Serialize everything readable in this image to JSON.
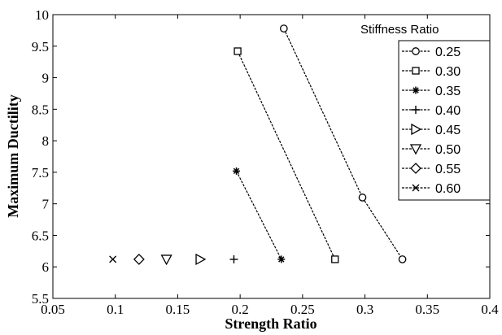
{
  "chart_data": {
    "type": "scatter",
    "xlabel": "Strength Ratio",
    "ylabel": "Maximum Ductility",
    "xlim": [
      0.05,
      0.4
    ],
    "ylim": [
      5.5,
      10
    ],
    "xticks": [
      0.05,
      0.1,
      0.15,
      0.2,
      0.25,
      0.3,
      0.35,
      0.4
    ],
    "yticks": [
      5.5,
      6,
      6.5,
      7,
      7.5,
      8,
      8.5,
      9,
      9.5,
      10
    ],
    "xtick_labels": [
      "0.05",
      "0.1",
      "0.15",
      "0.2",
      "0.25",
      "0.3",
      "0.35",
      "0.4"
    ],
    "ytick_labels": [
      "5.5",
      "6",
      "6.5",
      "7",
      "7.5",
      "8",
      "8.5",
      "9",
      "9.5",
      "10"
    ],
    "grid": false,
    "legend_title": "Stiffness Ratio",
    "legend_position": "top-right",
    "line_style": "dashed",
    "color": "#000000",
    "series": [
      {
        "name": "0.25",
        "marker": "circle",
        "points": [
          [
            0.235,
            9.78
          ],
          [
            0.298,
            7.1
          ],
          [
            0.33,
            6.12
          ]
        ]
      },
      {
        "name": "0.30",
        "marker": "square",
        "points": [
          [
            0.198,
            9.42
          ],
          [
            0.276,
            6.12
          ]
        ]
      },
      {
        "name": "0.35",
        "marker": "star",
        "points": [
          [
            0.197,
            7.52
          ],
          [
            0.233,
            6.12
          ]
        ]
      },
      {
        "name": "0.40",
        "marker": "plus",
        "points": [
          [
            0.195,
            6.12
          ]
        ]
      },
      {
        "name": "0.45",
        "marker": "triangle-right",
        "points": [
          [
            0.168,
            6.12
          ]
        ]
      },
      {
        "name": "0.50",
        "marker": "triangle-down",
        "points": [
          [
            0.141,
            6.12
          ]
        ]
      },
      {
        "name": "0.55",
        "marker": "diamond",
        "points": [
          [
            0.119,
            6.12
          ]
        ]
      },
      {
        "name": "0.60",
        "marker": "x",
        "points": [
          [
            0.098,
            6.12
          ]
        ]
      }
    ]
  }
}
